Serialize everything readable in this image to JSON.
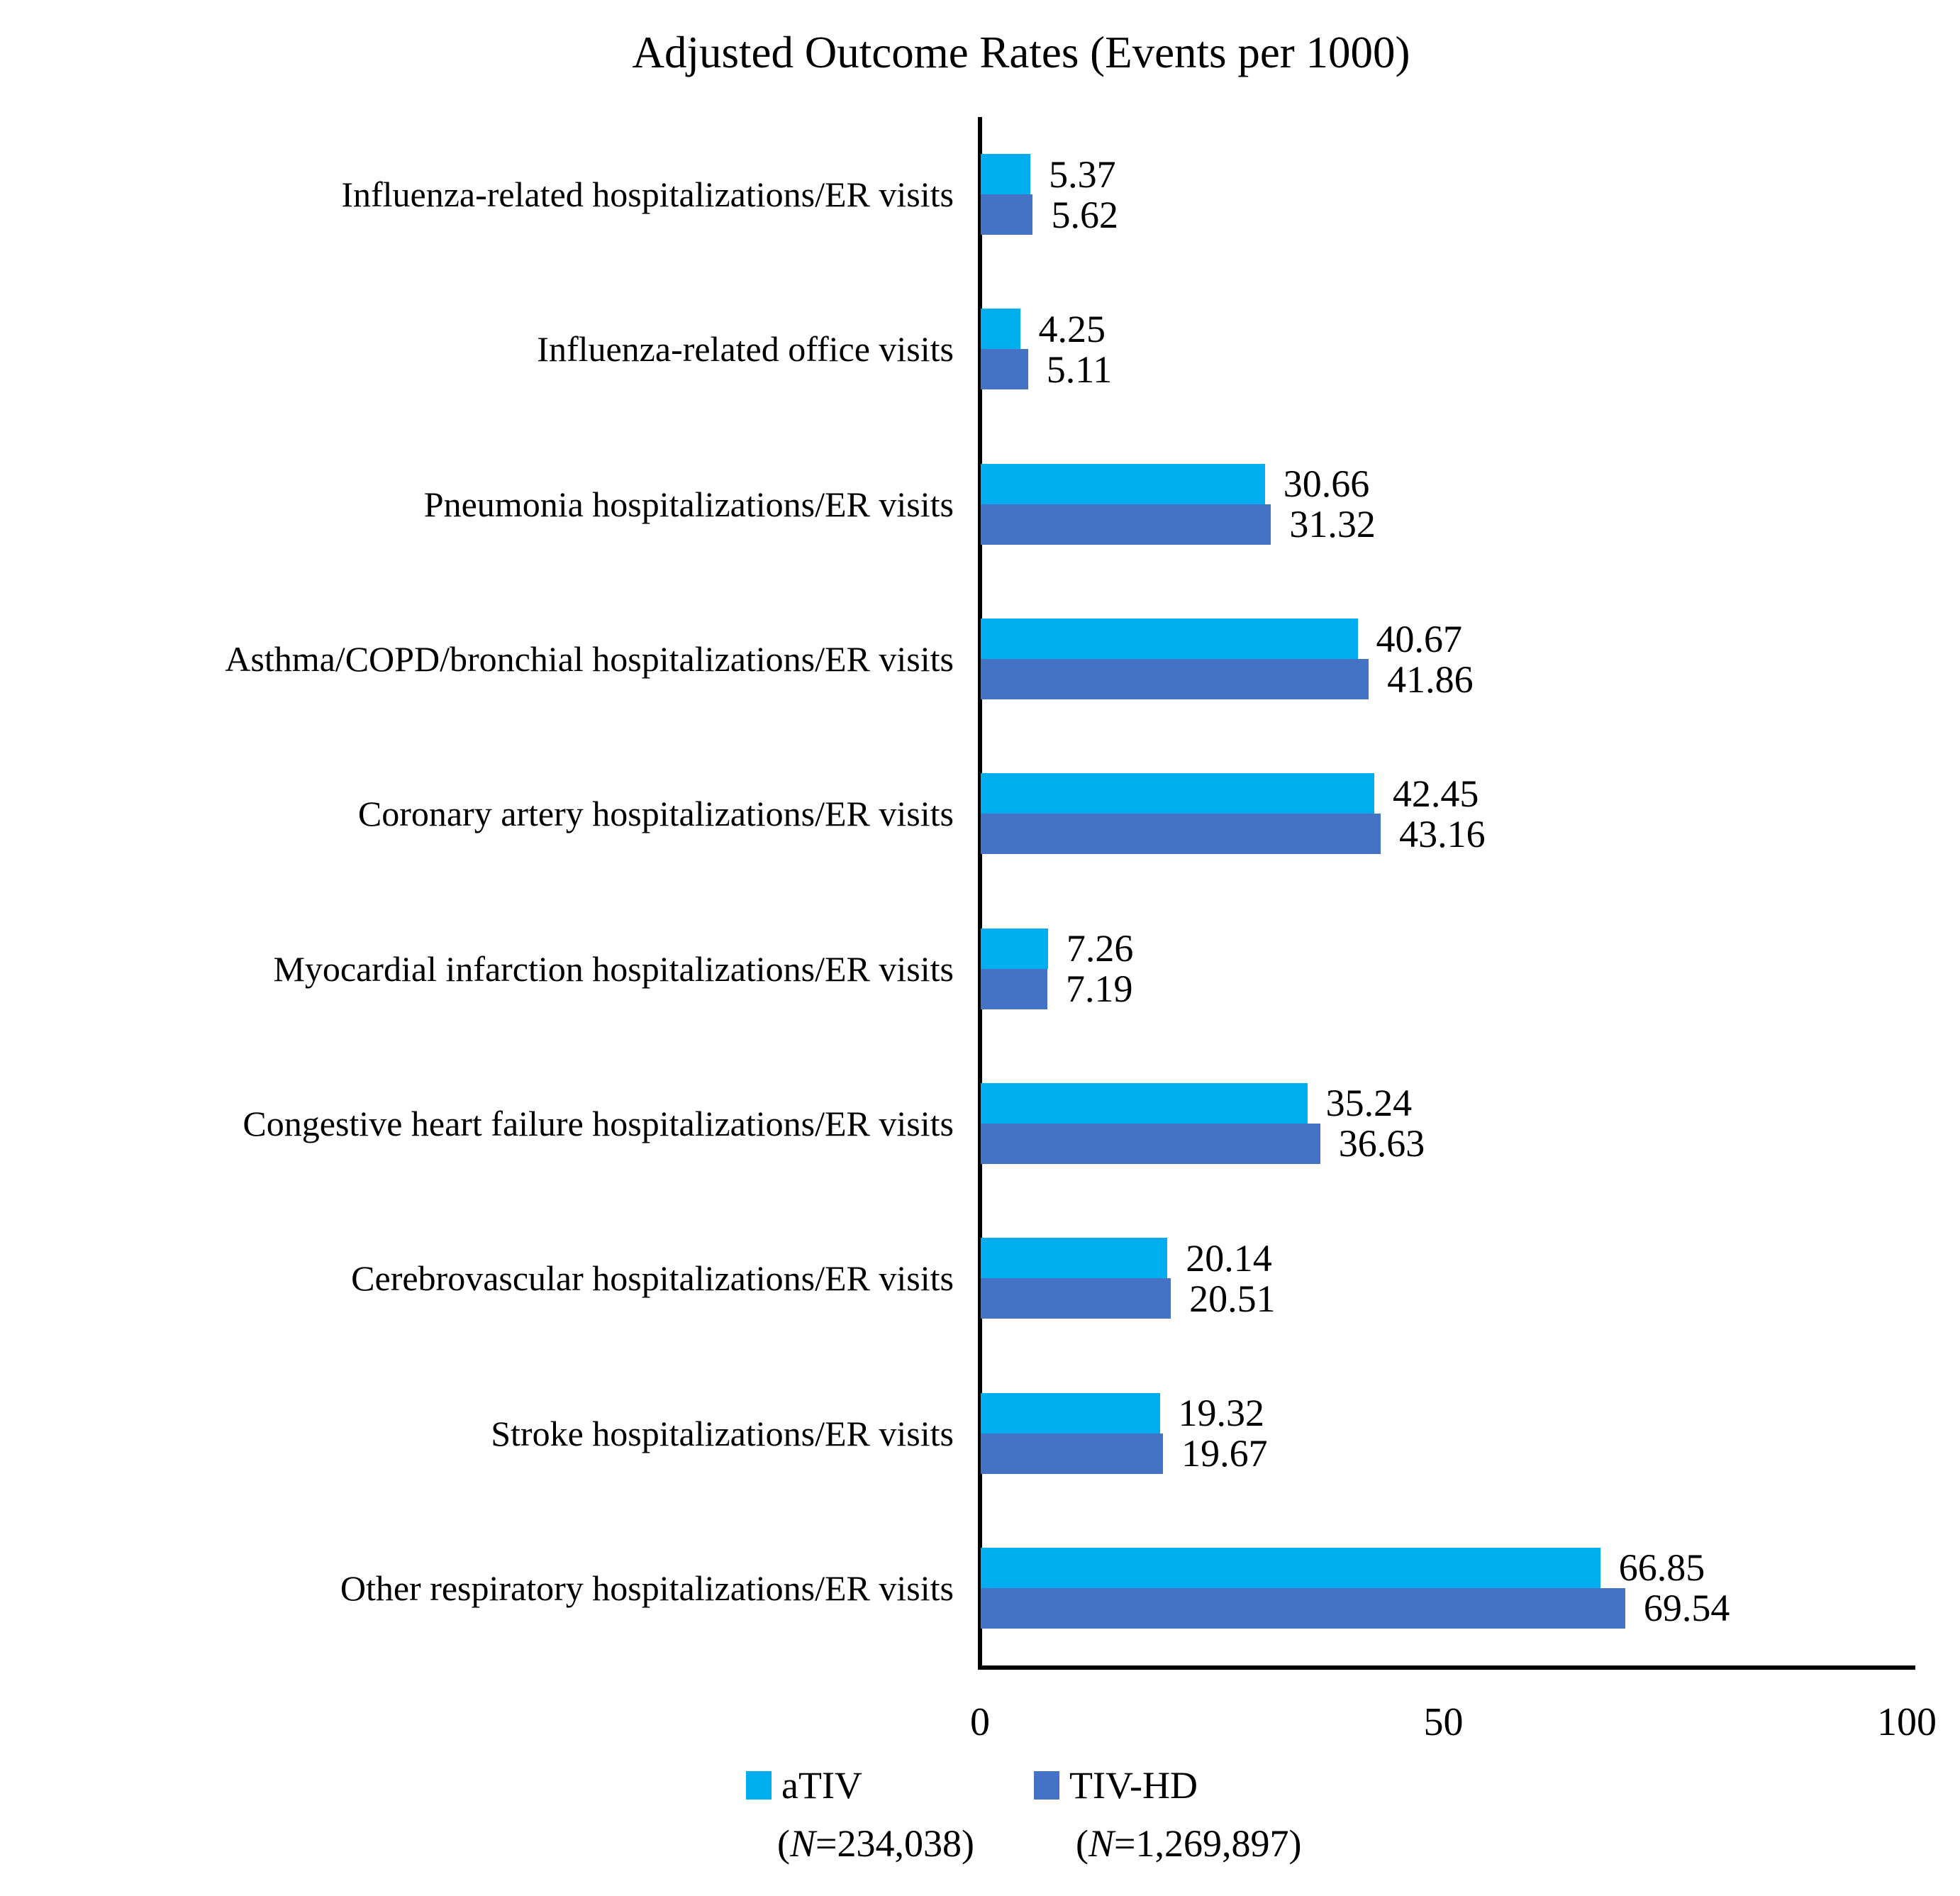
{
  "title": "Adjusted Outcome Rates (Events per 1000)",
  "chart_data": {
    "type": "bar",
    "orientation": "horizontal",
    "title": "Adjusted Outcome Rates (Events per 1000)",
    "categories": [
      "Influenza-related hospitalizations/ER visits",
      "Influenza-related office visits",
      "Pneumonia hospitalizations/ER visits",
      "Asthma/COPD/bronchial hospitalizations/ER visits",
      "Coronary artery hospitalizations/ER visits",
      "Myocardial infarction hospitalizations/ER visits",
      "Congestive heart failure hospitalizations/ER visits",
      "Cerebrovascular hospitalizations/ER visits",
      "Stroke hospitalizations/ER visits",
      "Other respiratory hospitalizations/ER visits"
    ],
    "series": [
      {
        "name": "aTIV",
        "n_label": "(N=234,038)",
        "color": "#00AEEF",
        "values": [
          5.37,
          4.25,
          30.66,
          40.67,
          42.45,
          7.26,
          35.24,
          20.14,
          19.32,
          66.85
        ]
      },
      {
        "name": "TIV-HD",
        "n_label": "(N=1,269,897)",
        "color": "#4472C4",
        "values": [
          5.62,
          5.11,
          31.32,
          41.86,
          43.16,
          7.19,
          36.63,
          20.51,
          19.67,
          69.54
        ]
      }
    ],
    "xlabel": "",
    "ylabel": "",
    "xlim": [
      0,
      100
    ],
    "xticks": [
      0,
      50,
      100
    ],
    "value_labels_shown": true,
    "grid": false,
    "legend_position": "bottom",
    "axis_color": "#000000",
    "text_color": "#000000",
    "background_color": "#FFFFFF"
  }
}
